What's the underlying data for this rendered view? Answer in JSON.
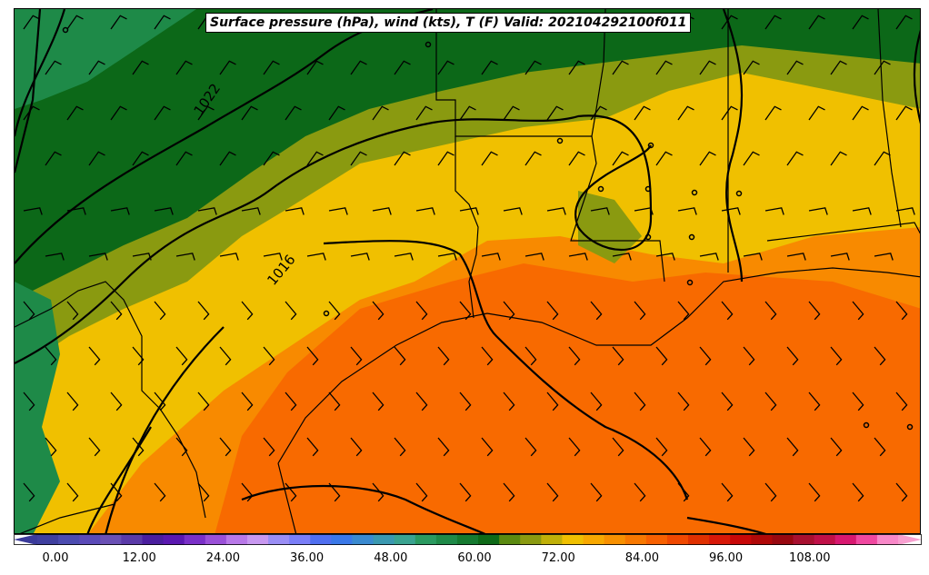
{
  "title": "Surface pressure (hPa), wind (kts), T (F) Valid: 202104292100f011",
  "contour_labels": [
    "1022",
    "1016"
  ],
  "colorbar": {
    "ticks": [
      "0.00",
      "12.00",
      "24.00",
      "36.00",
      "48.00",
      "60.00",
      "72.00",
      "84.00",
      "96.00",
      "108.00"
    ],
    "colors": [
      "#3f3f9f",
      "#4b4bb0",
      "#5a4ab8",
      "#6a50b5",
      "#5a3aa8",
      "#4a1e9e",
      "#5a18b0",
      "#7a30c8",
      "#9a50d8",
      "#b878e8",
      "#c898f0",
      "#9a8ef5",
      "#7a7ef8",
      "#4f6ff0",
      "#3a78e8",
      "#3a8ad0",
      "#3a98b0",
      "#3aa390",
      "#2a9a60",
      "#1e8a48",
      "#157a30",
      "#0e6a18",
      "#5a8a10",
      "#8a9a10",
      "#c0b008",
      "#f0c000",
      "#f8a800",
      "#f89000",
      "#f87800",
      "#f86000",
      "#f04800",
      "#e03000",
      "#d81808",
      "#c80808",
      "#b00808",
      "#980810",
      "#a81030",
      "#c01048",
      "#d81870",
      "#f048a0",
      "#f888c8"
    ],
    "low_color": "#3a3a9a",
    "high_color": "#f8a0d0"
  },
  "palette": {
    "dark_green": "#0c6818",
    "green": "#1e8a48",
    "olive": "#8a9a10",
    "yellow": "#f0c000",
    "orange": "#f88a00",
    "red_orange": "#f86a00"
  }
}
